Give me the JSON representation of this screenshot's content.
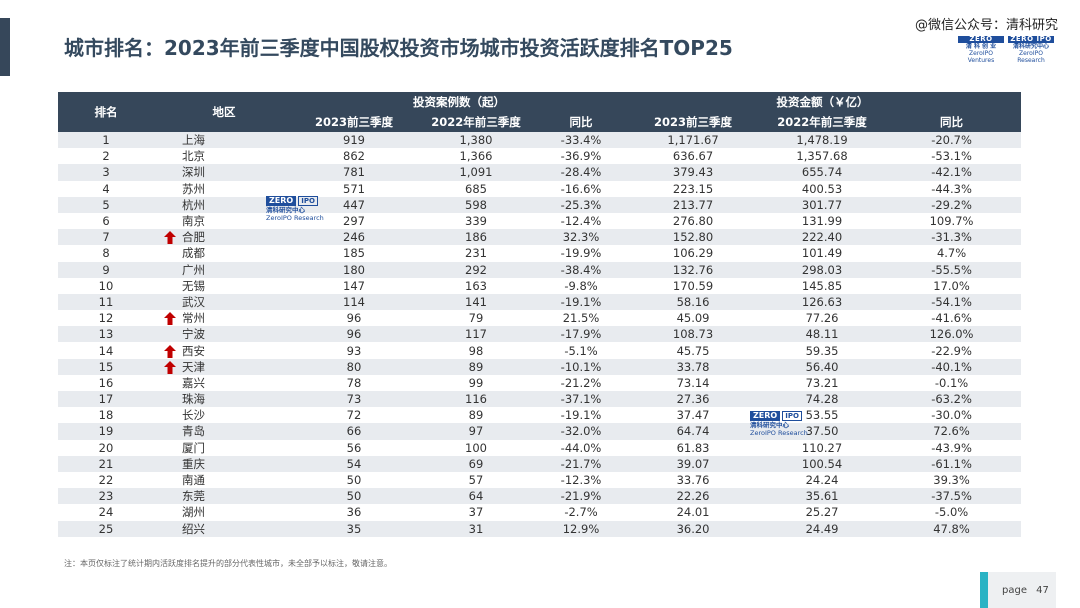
{
  "header": {
    "title": "城市排名：2023年前三季度中国股权投资市场城市投资活跃度排名TOP25",
    "watermark": "@微信公众号：清科研究",
    "logo_left_top": "ZERO",
    "logo_left_bottom": "清 科 创 业",
    "logo_right_top": "ZERO IPO",
    "logo_right_bottom": "清科研究中心",
    "logo_right_sub": "ZeroIPO Research",
    "logo_left_sub": "ZeroIPO Ventures"
  },
  "table": {
    "col_rank": "排名",
    "col_region": "地区",
    "group_cases": "投资案例数（起）",
    "group_amount": "投资金额（￥亿）",
    "sub_2023": "2023前三季度",
    "sub_2022": "2022年前三季度",
    "sub_yoy": "同比",
    "sub_2023_amt": "2023前三季度",
    "sub_2022_amt": "2022年前三季度",
    "sub_yoy_amt": "同比",
    "rows": [
      {
        "rank": "1",
        "region": "上海",
        "c23": "919",
        "c22": "1,380",
        "cy": "-33.4%",
        "a23": "1,171.67",
        "a22": "1,478.19",
        "ay": "-20.7%",
        "up": false
      },
      {
        "rank": "2",
        "region": "北京",
        "c23": "862",
        "c22": "1,366",
        "cy": "-36.9%",
        "a23": "636.67",
        "a22": "1,357.68",
        "ay": "-53.1%",
        "up": false
      },
      {
        "rank": "3",
        "region": "深圳",
        "c23": "781",
        "c22": "1,091",
        "cy": "-28.4%",
        "a23": "379.43",
        "a22": "655.74",
        "ay": "-42.1%",
        "up": false
      },
      {
        "rank": "4",
        "region": "苏州",
        "c23": "571",
        "c22": "685",
        "cy": "-16.6%",
        "a23": "223.15",
        "a22": "400.53",
        "ay": "-44.3%",
        "up": false
      },
      {
        "rank": "5",
        "region": "杭州",
        "c23": "447",
        "c22": "598",
        "cy": "-25.3%",
        "a23": "213.77",
        "a22": "301.77",
        "ay": "-29.2%",
        "up": false
      },
      {
        "rank": "6",
        "region": "南京",
        "c23": "297",
        "c22": "339",
        "cy": "-12.4%",
        "a23": "276.80",
        "a22": "131.99",
        "ay": "109.7%",
        "up": false
      },
      {
        "rank": "7",
        "region": "合肥",
        "c23": "246",
        "c22": "186",
        "cy": "32.3%",
        "a23": "152.80",
        "a22": "222.40",
        "ay": "-31.3%",
        "up": true
      },
      {
        "rank": "8",
        "region": "成都",
        "c23": "185",
        "c22": "231",
        "cy": "-19.9%",
        "a23": "106.29",
        "a22": "101.49",
        "ay": "4.7%",
        "up": false
      },
      {
        "rank": "9",
        "region": "广州",
        "c23": "180",
        "c22": "292",
        "cy": "-38.4%",
        "a23": "132.76",
        "a22": "298.03",
        "ay": "-55.5%",
        "up": false
      },
      {
        "rank": "10",
        "region": "无锡",
        "c23": "147",
        "c22": "163",
        "cy": "-9.8%",
        "a23": "170.59",
        "a22": "145.85",
        "ay": "17.0%",
        "up": false
      },
      {
        "rank": "11",
        "region": "武汉",
        "c23": "114",
        "c22": "141",
        "cy": "-19.1%",
        "a23": "58.16",
        "a22": "126.63",
        "ay": "-54.1%",
        "up": false
      },
      {
        "rank": "12",
        "region": "常州",
        "c23": "96",
        "c22": "79",
        "cy": "21.5%",
        "a23": "45.09",
        "a22": "77.26",
        "ay": "-41.6%",
        "up": true
      },
      {
        "rank": "13",
        "region": "宁波",
        "c23": "96",
        "c22": "117",
        "cy": "-17.9%",
        "a23": "108.73",
        "a22": "48.11",
        "ay": "126.0%",
        "up": false
      },
      {
        "rank": "14",
        "region": "西安",
        "c23": "93",
        "c22": "98",
        "cy": "-5.1%",
        "a23": "45.75",
        "a22": "59.35",
        "ay": "-22.9%",
        "up": true
      },
      {
        "rank": "15",
        "region": "天津",
        "c23": "80",
        "c22": "89",
        "cy": "-10.1%",
        "a23": "33.78",
        "a22": "56.40",
        "ay": "-40.1%",
        "up": true
      },
      {
        "rank": "16",
        "region": "嘉兴",
        "c23": "78",
        "c22": "99",
        "cy": "-21.2%",
        "a23": "73.14",
        "a22": "73.21",
        "ay": "-0.1%",
        "up": false
      },
      {
        "rank": "17",
        "region": "珠海",
        "c23": "73",
        "c22": "116",
        "cy": "-37.1%",
        "a23": "27.36",
        "a22": "74.28",
        "ay": "-63.2%",
        "up": false
      },
      {
        "rank": "18",
        "region": "长沙",
        "c23": "72",
        "c22": "89",
        "cy": "-19.1%",
        "a23": "37.47",
        "a22": "53.55",
        "ay": "-30.0%",
        "up": false
      },
      {
        "rank": "19",
        "region": "青岛",
        "c23": "66",
        "c22": "97",
        "cy": "-32.0%",
        "a23": "64.74",
        "a22": "37.50",
        "ay": "72.6%",
        "up": false
      },
      {
        "rank": "20",
        "region": "厦门",
        "c23": "56",
        "c22": "100",
        "cy": "-44.0%",
        "a23": "61.83",
        "a22": "110.27",
        "ay": "-43.9%",
        "up": false
      },
      {
        "rank": "21",
        "region": "重庆",
        "c23": "54",
        "c22": "69",
        "cy": "-21.7%",
        "a23": "39.07",
        "a22": "100.54",
        "ay": "-61.1%",
        "up": false
      },
      {
        "rank": "22",
        "region": "南通",
        "c23": "50",
        "c22": "57",
        "cy": "-12.3%",
        "a23": "33.76",
        "a22": "24.24",
        "ay": "39.3%",
        "up": false
      },
      {
        "rank": "23",
        "region": "东莞",
        "c23": "50",
        "c22": "64",
        "cy": "-21.9%",
        "a23": "22.26",
        "a22": "35.61",
        "ay": "-37.5%",
        "up": false
      },
      {
        "rank": "24",
        "region": "湖州",
        "c23": "36",
        "c22": "37",
        "cy": "-2.7%",
        "a23": "24.01",
        "a22": "25.27",
        "ay": "-5.0%",
        "up": false
      },
      {
        "rank": "25",
        "region": "绍兴",
        "c23": "35",
        "c22": "31",
        "cy": "12.9%",
        "a23": "36.20",
        "a22": "24.49",
        "ay": "47.8%",
        "up": false
      }
    ]
  },
  "note": "注：本页仅标注了统计期内活跃度排名提升的部分代表性城市，未全部予以标注，敬请注意。",
  "page": {
    "label": "page",
    "number": "47"
  },
  "overlay_logo": {
    "top": "ZERO",
    "top2": "IPO",
    "mid": "清科研究中心",
    "sub": "ZeroIPO Research"
  },
  "colors": {
    "header_bg": "#36475a",
    "row_alt": "#e8ebef",
    "arrow": "#c00000",
    "accent": "#2ab3c4"
  }
}
